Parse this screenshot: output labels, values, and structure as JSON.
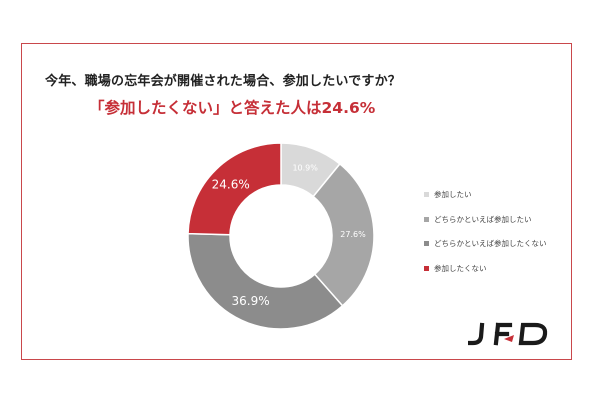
{
  "chart_data": {
    "type": "pie",
    "donut": true,
    "title": "今年、職場の忘年会が開催された場合、参加したいですか？",
    "subtitle": "「参加したくない」と答えた人は24.6%",
    "categories": [
      "参加したい",
      "どちらかといえば参加したい",
      "どちらかといえば参加したくない",
      "参加したくない"
    ],
    "values": [
      10.9,
      27.6,
      36.9,
      24.6
    ],
    "value_labels": [
      "10.9%",
      "27.6%",
      "36.9%",
      "24.6%"
    ],
    "colors": [
      "#d9d9d9",
      "#a6a6a6",
      "#8c8c8c",
      "#c62f37"
    ],
    "start": "12 o'clock",
    "direction": "clockwise",
    "legend": "right"
  },
  "brand": {
    "logo_text": "JFD",
    "accent": "#c62f37"
  }
}
